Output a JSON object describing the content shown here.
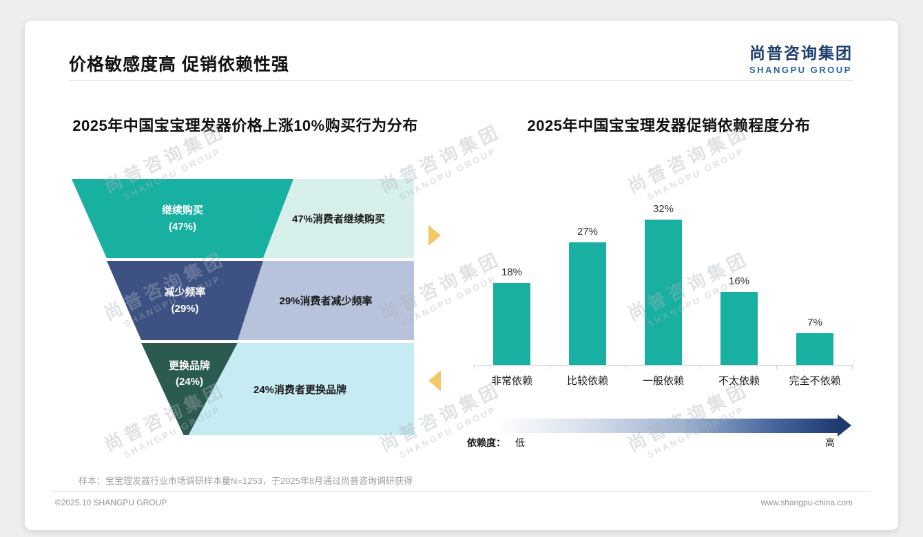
{
  "page": {
    "title": "价格敏感度高 促销依赖性强",
    "logo": {
      "cn": "尚普咨询集团",
      "en": "SHANGPU GROUP"
    },
    "watermark": {
      "cn": "尚普咨询集团",
      "en": "SHANGPU GROUP"
    },
    "sample_note": "样本：宝宝理发器行业市场调研样本量N=1253，于2025年8月通过尚普咨询调研获得",
    "footer": {
      "left": "©2025.10 SHANGPU GROUP",
      "right": "www.shangpu-china.com"
    }
  },
  "colors": {
    "teal": "#17b0a1",
    "dark_blue": "#3d5183",
    "dark_green": "#2b5a50",
    "panel_teal": "#d8f0ec",
    "panel_blue": "#b7c3dc",
    "panel_cyan": "#c6ebf3",
    "arrow_yellow": "#f2c868",
    "logo_navy": "#1d3e6f",
    "gradient_end_navy": "#1e3a70"
  },
  "chart_data": [
    {
      "type": "funnel",
      "title": "2025年中国宝宝理发器价格上涨10%购买行为分布",
      "stages": [
        {
          "label": "继续购买",
          "pct": "(47%)",
          "value": 47,
          "desc": "47%消费者继续购买",
          "color": "#17b0a1",
          "panel_color": "#d8f0ec"
        },
        {
          "label": "减少频率",
          "pct": "(29%)",
          "value": 29,
          "desc": "29%消费者减少频率",
          "color": "#3d5183",
          "panel_color": "#b7c3dc"
        },
        {
          "label": "更换品牌",
          "pct": "(24%)",
          "value": 24,
          "desc": "24%消费者更换品牌",
          "color": "#2b5a50",
          "panel_color": "#c6ebf3"
        }
      ]
    },
    {
      "type": "bar",
      "title": "2025年中国宝宝理发器促销依赖程度分布",
      "categories": [
        "非常依赖",
        "比较依赖",
        "一般依赖",
        "不太依赖",
        "完全不依赖"
      ],
      "values": [
        18,
        27,
        32,
        16,
        7
      ],
      "labels": [
        "18%",
        "27%",
        "32%",
        "16%",
        "7%"
      ],
      "bar_color": "#17b0a1",
      "ylim": [
        0,
        35
      ],
      "grid": false,
      "axis_note": {
        "label": "依赖度：",
        "low": "低",
        "high": "高"
      }
    }
  ]
}
